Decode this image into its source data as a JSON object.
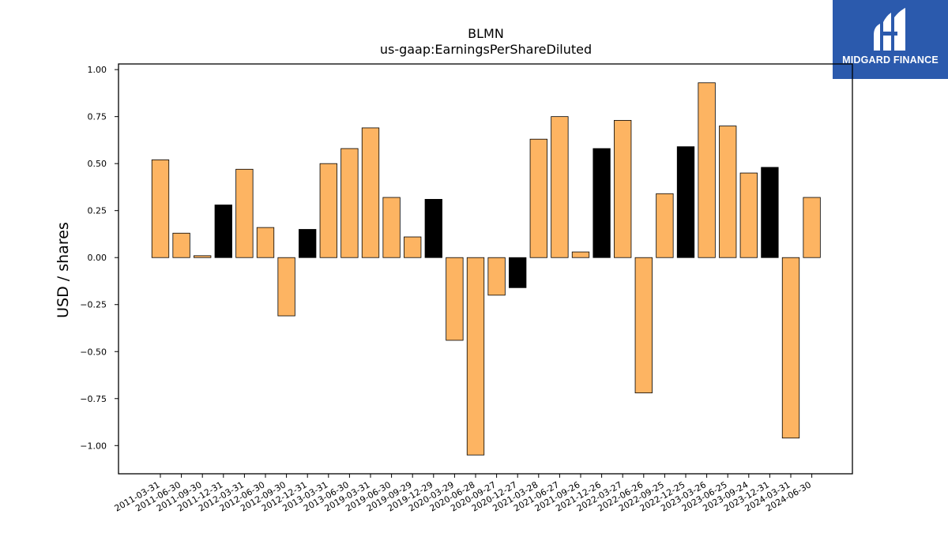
{
  "logo": {
    "text": "MIDGARD FINANCE",
    "icon": "midgard-logo-icon",
    "background": "#2b5aad"
  },
  "chart_data": {
    "type": "bar",
    "title": "BLMN",
    "subtitle": "us-gaap:EarningsPerShareDiluted",
    "xlabel": "",
    "ylabel": "USD / shares",
    "ylim": [
      -1.15,
      1.03
    ],
    "yticks": [
      1.0,
      0.75,
      0.5,
      0.25,
      0.0,
      -0.25,
      -0.5,
      -0.75,
      -1.0
    ],
    "ytick_labels": [
      "1.00",
      "0.75",
      "0.50",
      "0.25",
      "0.00",
      "−0.25",
      "−0.50",
      "−0.75",
      "−1.00"
    ],
    "grid": false,
    "legend": "none",
    "colors": {
      "default": "#fdb462",
      "highlight": "#000000",
      "edge": "#000000"
    },
    "categories": [
      "2011-03-31",
      "2011-06-30",
      "2011-09-30",
      "2011-12-31",
      "2012-03-31",
      "2012-06-30",
      "2012-09-30",
      "2012-12-31",
      "2013-03-31",
      "2013-06-30",
      "2019-03-31",
      "2019-06-30",
      "2019-09-29",
      "2019-12-29",
      "2020-03-29",
      "2020-06-28",
      "2020-09-27",
      "2020-12-27",
      "2021-03-28",
      "2021-06-27",
      "2021-09-26",
      "2021-12-26",
      "2022-03-27",
      "2022-06-26",
      "2022-09-25",
      "2022-12-25",
      "2023-03-26",
      "2023-06-25",
      "2023-09-24",
      "2023-12-31",
      "2024-03-31",
      "2024-06-30"
    ],
    "values": [
      0.52,
      0.13,
      0.01,
      0.28,
      0.47,
      0.16,
      -0.31,
      0.15,
      0.5,
      0.58,
      0.69,
      0.32,
      0.11,
      0.31,
      -0.44,
      -1.05,
      -0.2,
      -0.16,
      0.63,
      0.75,
      0.03,
      0.58,
      0.73,
      -0.72,
      0.34,
      0.59,
      0.93,
      0.7,
      0.45,
      0.48,
      -0.96,
      0.32
    ],
    "highlight": [
      false,
      false,
      false,
      true,
      false,
      false,
      false,
      true,
      false,
      false,
      false,
      false,
      false,
      true,
      false,
      false,
      false,
      true,
      false,
      false,
      false,
      true,
      false,
      false,
      false,
      true,
      false,
      false,
      false,
      true,
      false,
      false
    ]
  }
}
